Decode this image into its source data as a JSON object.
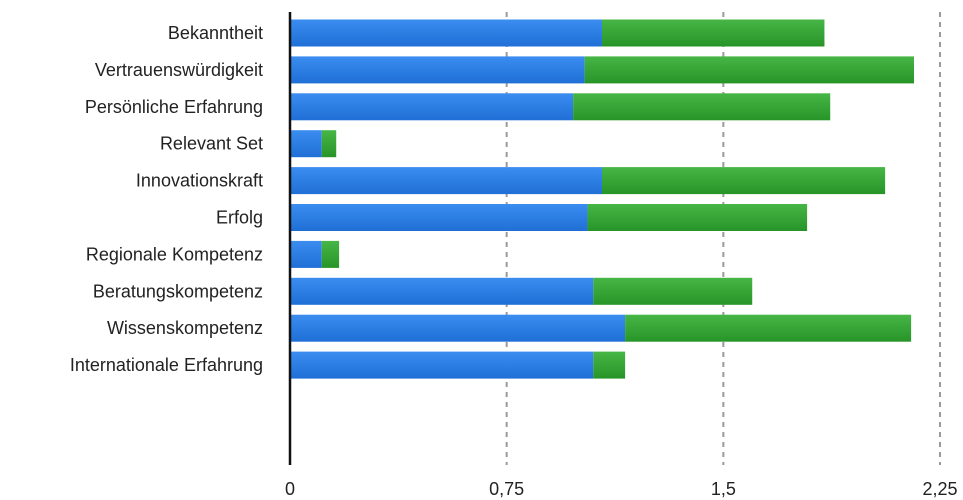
{
  "chart_data": {
    "type": "bar",
    "orientation": "horizontal",
    "stacked": true,
    "title": "",
    "xlabel": "",
    "ylabel": "",
    "categories": [
      "Bekanntheit",
      "Vertrauenswürdigkeit",
      "Persönliche Erfahrung",
      "Relevant Set",
      "Innovationskraft",
      "Erfolg",
      "Regionale Kompetenz",
      "Beratungskompetenz",
      "Wissenskompetenz",
      "Internationale Erfahrung"
    ],
    "series": [
      {
        "color": "#2f7fe0",
        "values": [
          1.08,
          1.02,
          0.98,
          0.11,
          1.08,
          1.03,
          0.11,
          1.05,
          1.16,
          1.05
        ]
      },
      {
        "color": "#3aa63a",
        "values": [
          0.77,
          1.14,
          0.89,
          0.05,
          0.98,
          0.76,
          0.06,
          0.55,
          0.99,
          0.11
        ]
      }
    ],
    "xlim": [
      0,
      2.25
    ],
    "xticks": [
      0,
      0.75,
      1.5,
      2.25
    ],
    "xtick_labels": [
      "0",
      "0,75",
      "1,5",
      "2,25"
    ],
    "grid": "vertical dashed",
    "legend": "none"
  }
}
